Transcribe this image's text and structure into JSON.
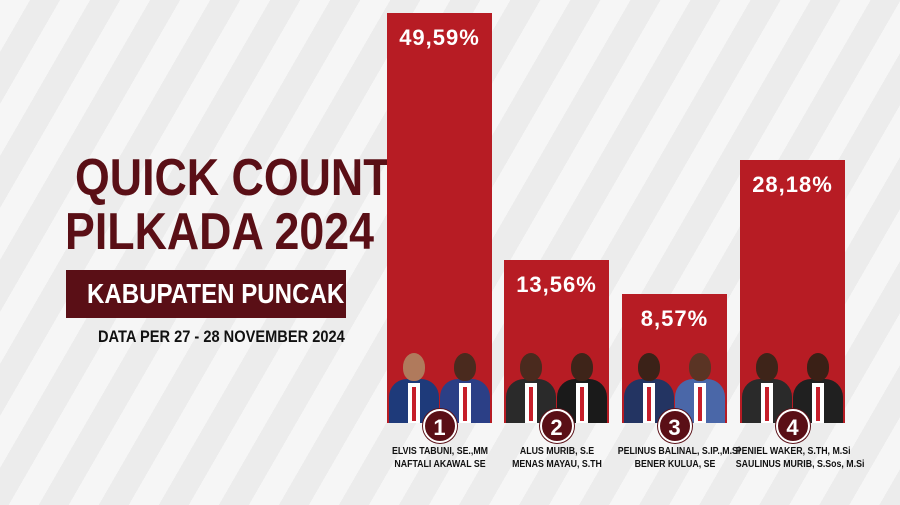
{
  "title": {
    "line1": "QUICK COUNT",
    "line2": "PILKADA 2024",
    "region": "KABUPATEN PUNCAK",
    "date": "DATA PER 27 - 28 NOVEMBER 2024"
  },
  "colors": {
    "bar": "#b71c24",
    "accent": "#5a0f16",
    "background": "#f4f4f4"
  },
  "chart_data": {
    "type": "bar",
    "categories": [
      "1",
      "2",
      "3",
      "4"
    ],
    "values": [
      49.59,
      13.56,
      8.57,
      28.18
    ],
    "value_labels": [
      "49,59%",
      "13,56%",
      "8,57%",
      "28,18%"
    ],
    "candidates": [
      {
        "number": "1",
        "line1": "ELVIS TABUNI, SE.,MM",
        "line2": "NAFTALI AKAWAL SE"
      },
      {
        "number": "2",
        "line1": "ALUS MURIB, S.E",
        "line2": "MENAS MAYAU, S.TH"
      },
      {
        "number": "3",
        "line1": "PELINUS BALINAL, S.IP.,M.Si",
        "line2": "BENER KULUA, SE"
      },
      {
        "number": "4",
        "line1": "PENIEL WAKER, S.TH, M.Si",
        "line2": "SAULINUS MURIB, S.Sos, M.Si"
      }
    ],
    "title": "QUICK COUNT PILKADA 2024",
    "xlabel": "",
    "ylabel": "",
    "ylim": [
      0,
      52
    ]
  }
}
